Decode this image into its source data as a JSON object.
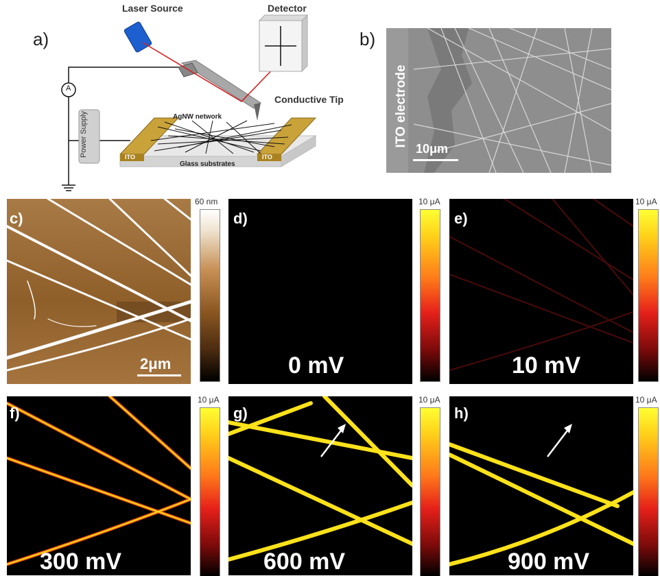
{
  "panels": {
    "a": "a)",
    "b": "b)",
    "c": "c)",
    "d": "d)",
    "e": "e)",
    "f": "f)",
    "g": "g)",
    "h": "h)"
  },
  "schematic": {
    "laser_source": "Laser Source",
    "detector": "Detector",
    "conductive_tip": "Conductive Tip",
    "agnw_network": "AgNW network",
    "power_supply": "Power Supply",
    "ito_left": "ITO",
    "ito_right": "ITO",
    "glass": "Glass substrates",
    "ammeter": "A"
  },
  "sem": {
    "electrode_label": "ITO electrode",
    "scale": "10μm"
  },
  "afm": {
    "scale": "2μm",
    "colorbar_max": "60 nm"
  },
  "current_maps": [
    {
      "id": "d",
      "voltage": "0 mV",
      "colorbar_max": "10 μA"
    },
    {
      "id": "e",
      "voltage": "10 mV",
      "colorbar_max": "10 μA"
    },
    {
      "id": "f",
      "voltage": "300 mV",
      "colorbar_max": "10 μA"
    },
    {
      "id": "g",
      "voltage": "600 mV",
      "colorbar_max": "10 μA"
    },
    {
      "id": "h",
      "voltage": "900 mV",
      "colorbar_max": "10 μA"
    }
  ],
  "colors": {
    "hot_max": "#ffff33",
    "afm_wire": "#ffffff",
    "ito_gold": "#c9a23a"
  }
}
